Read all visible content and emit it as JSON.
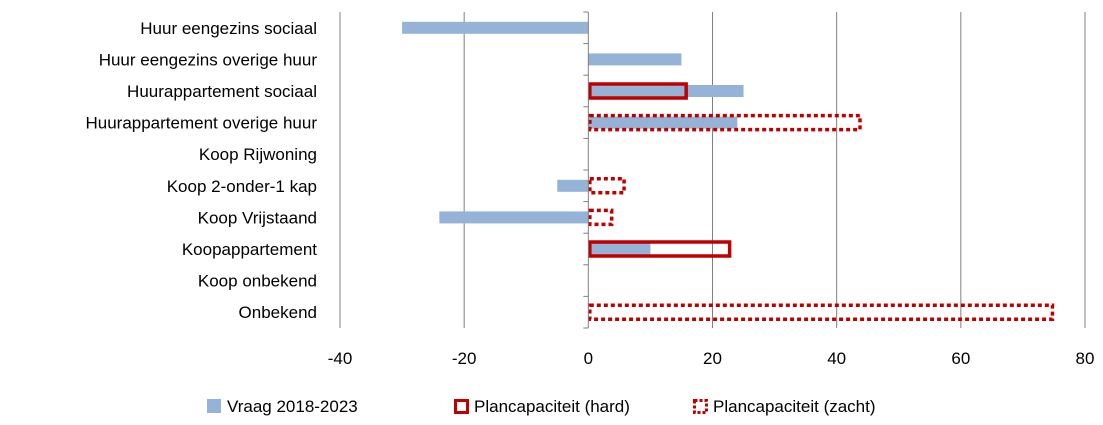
{
  "chart_data": {
    "type": "bar",
    "orientation": "horizontal",
    "categories": [
      "Huur eengezins sociaal",
      "Huur eengezins overige huur",
      "Huurappartement sociaal",
      "Huurappartement overige huur",
      "Koop Rijwoning",
      "Koop 2-onder-1 kap",
      "Koop Vrijstaand",
      "Koopappartement",
      "Koop onbekend",
      "Onbekend"
    ],
    "series": [
      {
        "name": "Vraag 2018-2023",
        "values": [
          -30,
          15,
          25,
          24,
          0,
          -5,
          -24,
          10,
          0,
          0
        ]
      },
      {
        "name": "Plancapaciteit (hard)",
        "values": [
          0,
          0,
          16,
          0,
          0,
          0,
          0,
          23,
          0,
          0
        ]
      },
      {
        "name": "Plancapaciteit (zacht)",
        "values": [
          0,
          0,
          0,
          44,
          0,
          6,
          4,
          0,
          0,
          75
        ]
      }
    ],
    "xlim": [
      -40,
      80
    ],
    "xticks": [
      "-40",
      "-20",
      "0",
      "20",
      "40",
      "60",
      "80"
    ],
    "grid": "vertical",
    "legend_position": "bottom",
    "colors": {
      "vraag": "#95B3D7",
      "hard": "#C00000",
      "zacht": "#C00000",
      "grid": "#808080"
    }
  }
}
